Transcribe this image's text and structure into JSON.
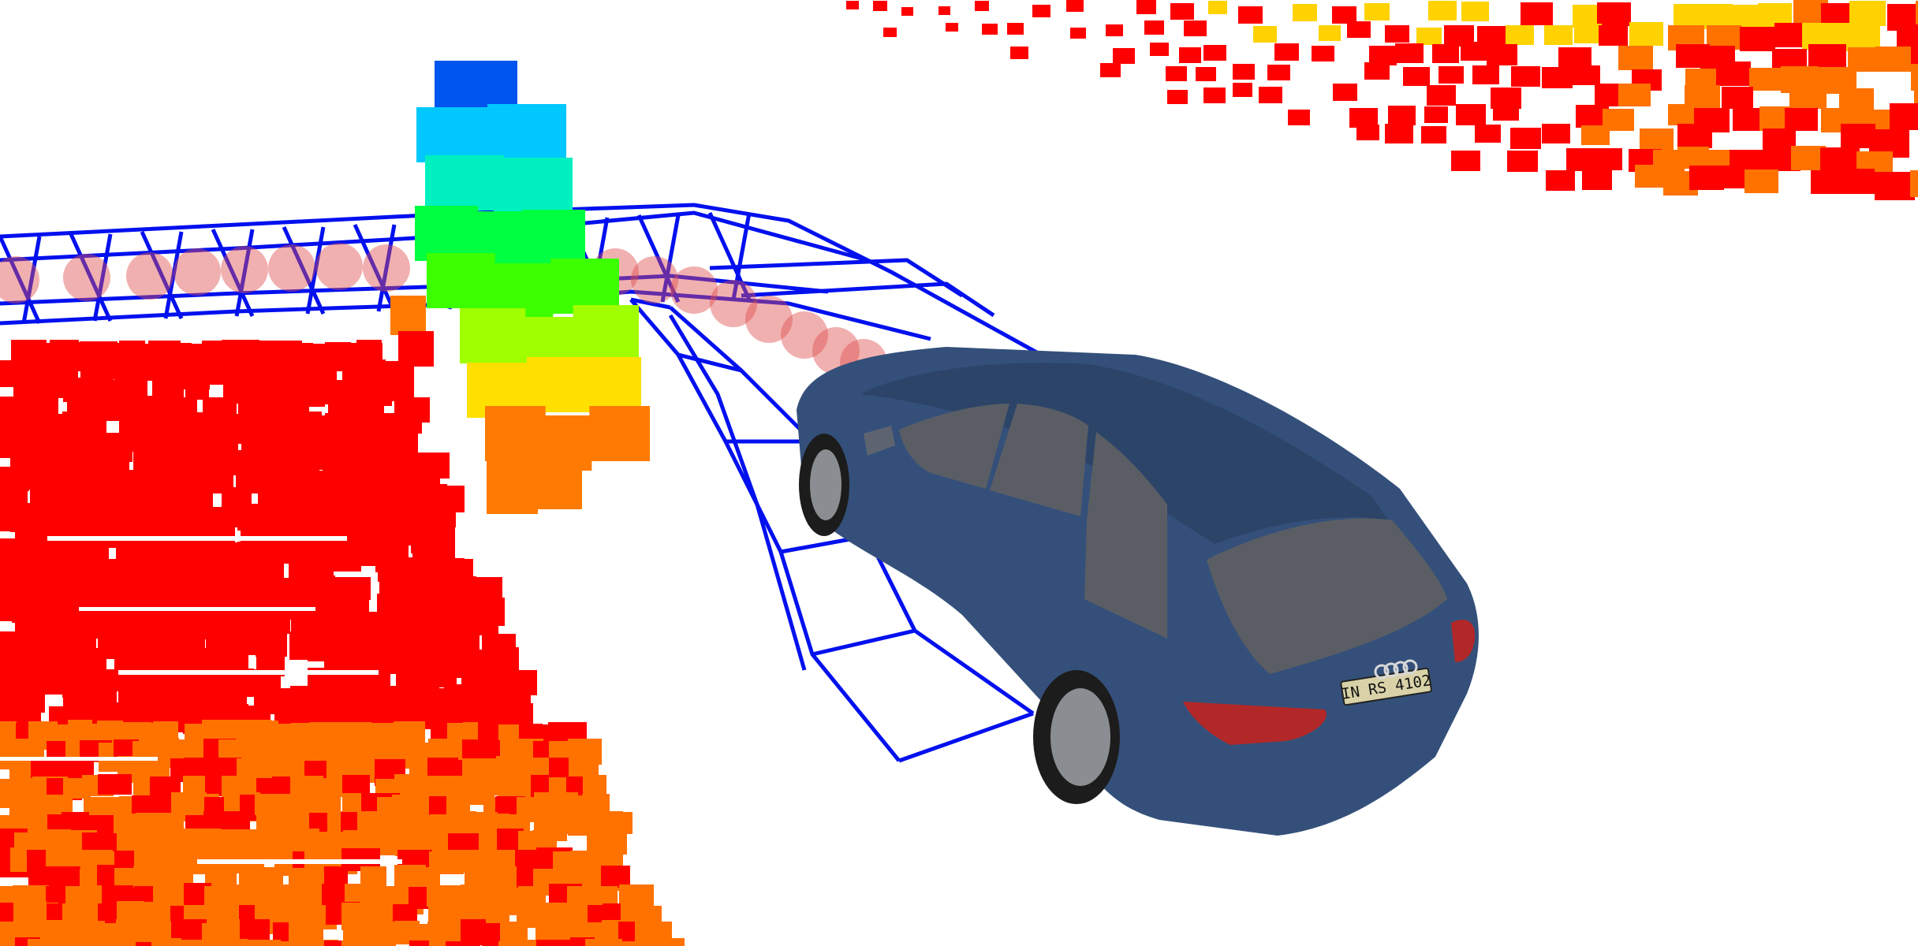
{
  "scene": {
    "background_color": "#ffffff",
    "occupancy_colormap": [
      "#0055ee",
      "#00c8ff",
      "#00f0c0",
      "#00ff40",
      "#3cff00",
      "#a0ff00",
      "#ffe000",
      "#ff7a00",
      "#ff0000"
    ],
    "floor_colors": {
      "near": "#ff0000",
      "mid": "#ff7200",
      "far": "#ffd200"
    },
    "trajectory_grid_color": "#0010ee",
    "path_marker_color": "#e05050",
    "vehicle": {
      "body_color": "#34507a",
      "window_color": "#5a5e64",
      "plate_text": "IN RS 4102"
    }
  }
}
